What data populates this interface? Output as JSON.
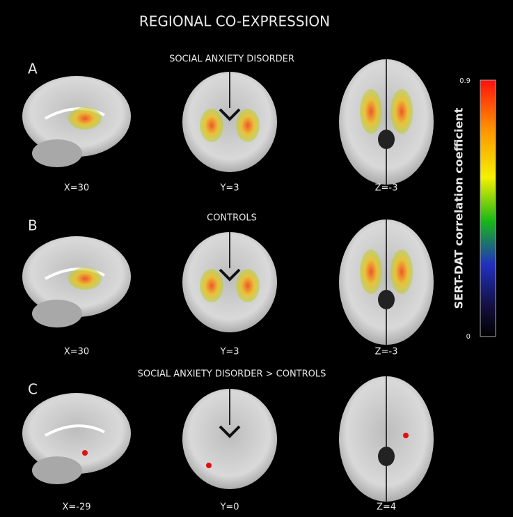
{
  "title": "REGIONAL CO-EXPRESSION",
  "panels": [
    {
      "letter": "A",
      "subtitle": "SOCIAL ANXIETY DISORDER",
      "views": [
        "X=30",
        "Y=3",
        "Z=-3"
      ]
    },
    {
      "letter": "B",
      "subtitle": "CONTROLS",
      "views": [
        "X=30",
        "Y=3",
        "Z=-3"
      ]
    },
    {
      "letter": "C",
      "subtitle": "SOCIAL ANXIETY DISORDER > CONTROLS",
      "views": [
        "X=-29",
        "Y=0",
        "Z=4"
      ]
    }
  ],
  "colorbar": {
    "label": "SERT-DAT correlation coefficient",
    "max": 0.9,
    "min": 0
  }
}
